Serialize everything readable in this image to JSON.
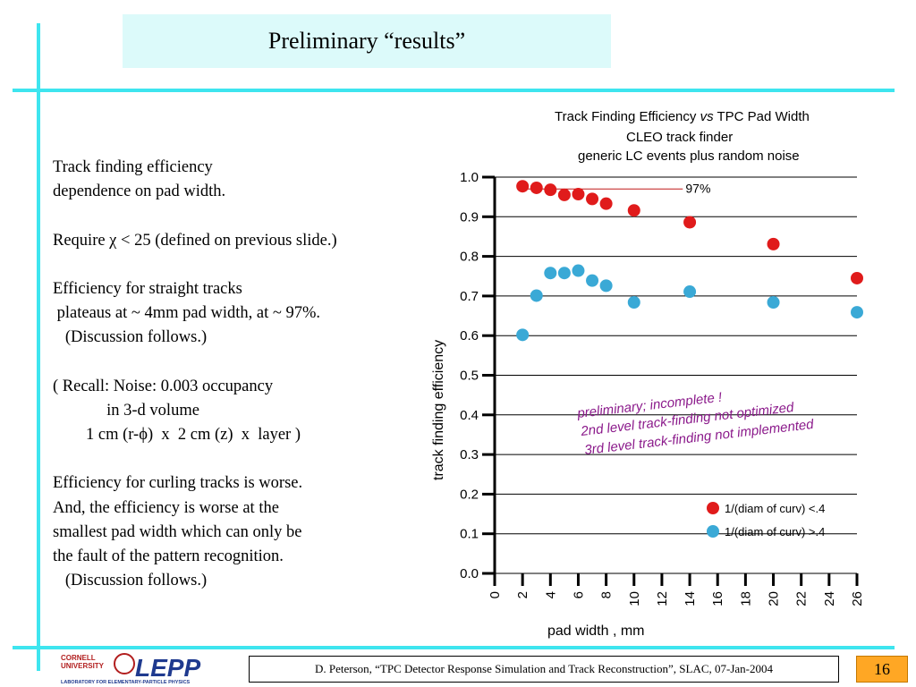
{
  "slide": {
    "title": "Preliminary “results”",
    "body_lines": [
      "Track finding efficiency",
      "dependence on pad width.",
      "",
      "Require χ < 25 (defined on previous slide.)",
      "",
      "Efficiency for straight tracks",
      " plateaus at ~ 4mm pad width, at ~ 97%.",
      "   (Discussion follows.)",
      "",
      "( Recall: Noise: 0.003 occupancy",
      "             in 3-d volume",
      "        1 cm (r-ϕ)  x  2 cm (z)  x  layer )",
      "",
      "Efficiency for curling tracks is worse.",
      "And, the efficiency is worse at the",
      "smallest pad width which can only be",
      "the fault of the pattern recognition.",
      "   (Discussion follows.)"
    ],
    "footer": "D. Peterson, “TPC Detector Response Simulation and Track Reconstruction”, SLAC, 07-Jan-2004",
    "page_number": "16",
    "logo": {
      "text": "LEPP",
      "university_line1": "CORNELL",
      "university_line2": "UNIVERSITY",
      "subtitle": "LABORATORY FOR ELEMENTARY-PARTICLE PHYSICS"
    }
  },
  "chart_data": {
    "type": "scatter",
    "title_parts": [
      "Track Finding Efficiency ",
      "vs",
      " TPC Pad Width"
    ],
    "subtitle_lines": [
      "CLEO track finder",
      "generic LC events plus random noise"
    ],
    "xlabel": "pad width , mm",
    "ylabel": "track finding efficiency",
    "xlim": [
      0,
      26
    ],
    "ylim": [
      0.0,
      1.0
    ],
    "xticks": [
      0,
      2,
      4,
      6,
      8,
      10,
      12,
      14,
      16,
      18,
      20,
      22,
      24,
      26
    ],
    "yticks": [
      0.0,
      0.1,
      0.2,
      0.3,
      0.4,
      0.5,
      0.6,
      0.7,
      0.8,
      0.9,
      1.0
    ],
    "ytick_labels": [
      "0.0",
      "0.1",
      "0.2",
      "0.3",
      "0.4",
      "0.5",
      "0.6",
      "0.7",
      "0.8",
      "0.9",
      "1.0"
    ],
    "grid": "horizontal",
    "legend_position": "bottom-right",
    "reference_label": "97%",
    "reference_value": 0.97,
    "annotation_lines": [
      "preliminary; incomplete !",
      "2nd level track-finding not optimized",
      "3rd level track-finding not implemented"
    ],
    "series": [
      {
        "name": "1/(diam of curv) <.4",
        "color": "#e01b1b",
        "x": [
          2,
          3,
          4,
          5,
          6,
          7,
          8,
          10,
          14,
          20,
          26
        ],
        "y": [
          0.977,
          0.973,
          0.968,
          0.955,
          0.957,
          0.945,
          0.933,
          0.916,
          0.886,
          0.831,
          0.745
        ]
      },
      {
        "name": "1/(diam of curv) >.4",
        "color": "#3aa9d6",
        "x": [
          2,
          3,
          4,
          5,
          6,
          7,
          8,
          10,
          14,
          20,
          26
        ],
        "y": [
          0.602,
          0.701,
          0.758,
          0.758,
          0.764,
          0.739,
          0.726,
          0.684,
          0.711,
          0.684,
          0.659
        ]
      }
    ],
    "colors": {
      "annotation": "#8b1a8b",
      "accent": "#3ee5ef",
      "page_badge": "#ffa724"
    }
  }
}
